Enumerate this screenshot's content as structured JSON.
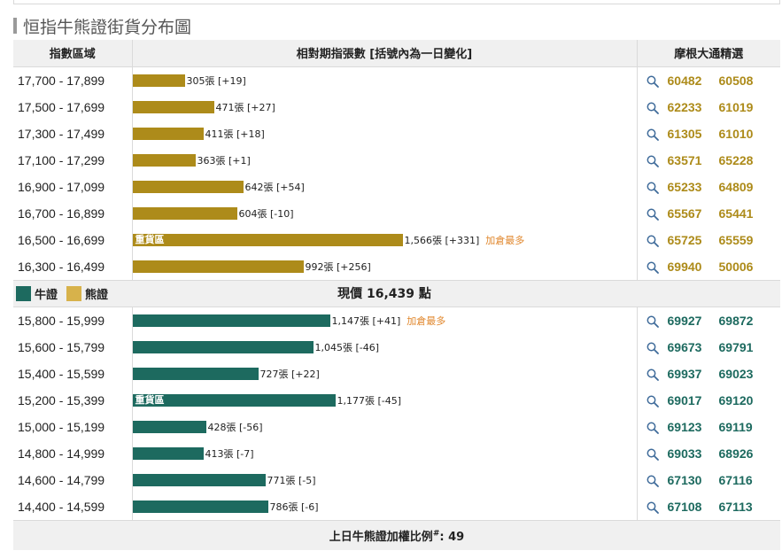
{
  "title": "恒指牛熊證街貨分布圖",
  "headers": {
    "range": "指數區域",
    "chart": "相對期指張數 [括號內為一日變化]",
    "picks": "摩根大通精選"
  },
  "legend": {
    "bull": "牛證",
    "bear": "熊證"
  },
  "current_price": "現價 16,439 點",
  "footer": {
    "label": "上日牛熊證加權比例",
    "mark": "#",
    "value": ": 49"
  },
  "colors": {
    "bear": "#ad8b1a",
    "bull": "#1d6a5f",
    "note": "#e0862b"
  },
  "icons": {
    "search": "search-icon"
  },
  "chart_data": {
    "type": "bar",
    "orientation": "horizontal",
    "series": [
      {
        "name": "熊證",
        "color": "#ad8b1a",
        "rows": [
          {
            "range": "17,700 - 17,899",
            "value": 305,
            "label": "305張 [+19]",
            "heavy": "",
            "note": "",
            "codes": [
              "60482",
              "60508"
            ]
          },
          {
            "range": "17,500 - 17,699",
            "value": 471,
            "label": "471張 [+27]",
            "heavy": "",
            "note": "",
            "codes": [
              "62233",
              "61019"
            ]
          },
          {
            "range": "17,300 - 17,499",
            "value": 411,
            "label": "411張 [+18]",
            "heavy": "",
            "note": "",
            "codes": [
              "61305",
              "61010"
            ]
          },
          {
            "range": "17,100 - 17,299",
            "value": 363,
            "label": "363張 [+1]",
            "heavy": "",
            "note": "",
            "codes": [
              "63571",
              "65228"
            ]
          },
          {
            "range": "16,900 - 17,099",
            "value": 642,
            "label": "642張 [+54]",
            "heavy": "",
            "note": "",
            "codes": [
              "65233",
              "64809"
            ]
          },
          {
            "range": "16,700 - 16,899",
            "value": 604,
            "label": "604張 [-10]",
            "heavy": "",
            "note": "",
            "codes": [
              "65567",
              "65441"
            ]
          },
          {
            "range": "16,500 - 16,699",
            "value": 1566,
            "label": "1,566張 [+331]",
            "heavy": "重貨區",
            "note": "加倉最多",
            "codes": [
              "65725",
              "65559"
            ]
          },
          {
            "range": "16,300 - 16,499",
            "value": 992,
            "label": "992張 [+256]",
            "heavy": "",
            "note": "",
            "codes": [
              "69940",
              "50006"
            ]
          }
        ]
      },
      {
        "name": "牛證",
        "color": "#1d6a5f",
        "rows": [
          {
            "range": "15,800 - 15,999",
            "value": 1147,
            "label": "1,147張 [+41]",
            "heavy": "",
            "note": "加倉最多",
            "codes": [
              "69927",
              "69872"
            ]
          },
          {
            "range": "15,600 - 15,799",
            "value": 1045,
            "label": "1,045張 [-46]",
            "heavy": "",
            "note": "",
            "codes": [
              "69673",
              "69791"
            ]
          },
          {
            "range": "15,400 - 15,599",
            "value": 727,
            "label": "727張 [+22]",
            "heavy": "",
            "note": "",
            "codes": [
              "69937",
              "69023"
            ]
          },
          {
            "range": "15,200 - 15,399",
            "value": 1177,
            "label": "1,177張 [-45]",
            "heavy": "重貨區",
            "note": "",
            "codes": [
              "69017",
              "69120"
            ]
          },
          {
            "range": "15,000 - 15,199",
            "value": 428,
            "label": "428張 [-56]",
            "heavy": "",
            "note": "",
            "codes": [
              "69123",
              "69119"
            ]
          },
          {
            "range": "14,800 - 14,999",
            "value": 413,
            "label": "413張 [-7]",
            "heavy": "",
            "note": "",
            "codes": [
              "69033",
              "68926"
            ]
          },
          {
            "range": "14,600 - 14,799",
            "value": 771,
            "label": "771張 [-5]",
            "heavy": "",
            "note": "",
            "codes": [
              "67130",
              "67116"
            ]
          },
          {
            "range": "14,400 - 14,599",
            "value": 786,
            "label": "786張 [-6]",
            "heavy": "",
            "note": "",
            "codes": [
              "67108",
              "67113"
            ]
          }
        ]
      }
    ],
    "xlim": [
      0,
      1566
    ]
  }
}
